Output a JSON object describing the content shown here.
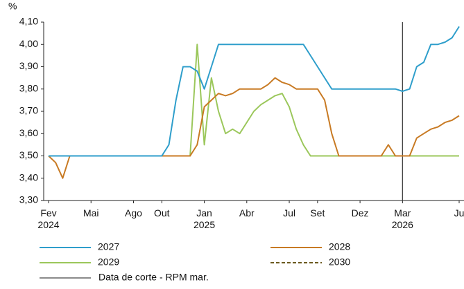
{
  "chart_data": {
    "type": "line",
    "y_axis_label": "%",
    "categories": [
      "Fev\n2024",
      null,
      null,
      null,
      null,
      null,
      "Mai",
      null,
      null,
      null,
      null,
      null,
      "Ago",
      null,
      null,
      null,
      "Out",
      null,
      null,
      null,
      null,
      null,
      "Jan\n2025",
      null,
      null,
      null,
      null,
      null,
      "Abr",
      null,
      null,
      null,
      null,
      null,
      "Jul",
      null,
      null,
      null,
      "Set",
      null,
      null,
      null,
      null,
      null,
      "Dez",
      null,
      null,
      null,
      null,
      null,
      "Mar\n2026",
      null,
      null,
      null,
      null,
      null,
      null,
      null,
      "Ju"
    ],
    "series": [
      {
        "name": "2027",
        "color": "#2e9ecb",
        "dashed": false,
        "values": [
          3.5,
          3.5,
          3.5,
          3.5,
          3.5,
          3.5,
          3.5,
          3.5,
          3.5,
          3.5,
          3.5,
          3.5,
          3.5,
          3.5,
          3.5,
          3.5,
          3.5,
          3.55,
          3.75,
          3.9,
          3.9,
          3.88,
          3.8,
          3.9,
          4.0,
          4.0,
          4.0,
          4.0,
          4.0,
          4.0,
          4.0,
          4.0,
          4.0,
          4.0,
          4.0,
          4.0,
          4.0,
          3.95,
          3.9,
          3.85,
          3.8,
          3.8,
          3.8,
          3.8,
          3.8,
          3.8,
          3.8,
          3.8,
          3.8,
          3.8,
          3.79,
          3.8,
          3.9,
          3.92,
          4.0,
          4.0,
          4.01,
          4.03,
          4.08
        ]
      },
      {
        "name": "2028",
        "color": "#c87a23",
        "dashed": false,
        "values": [
          3.5,
          3.47,
          3.4,
          3.5,
          3.5,
          3.5,
          3.5,
          3.5,
          3.5,
          3.5,
          3.5,
          3.5,
          3.5,
          3.5,
          3.5,
          3.5,
          3.5,
          3.5,
          3.5,
          3.5,
          3.5,
          3.55,
          3.72,
          3.75,
          3.78,
          3.77,
          3.78,
          3.8,
          3.8,
          3.8,
          3.8,
          3.82,
          3.85,
          3.83,
          3.82,
          3.8,
          3.8,
          3.8,
          3.8,
          3.75,
          3.6,
          3.5,
          3.5,
          3.5,
          3.5,
          3.5,
          3.5,
          3.5,
          3.55,
          3.5,
          3.5,
          3.5,
          3.58,
          3.6,
          3.62,
          3.63,
          3.65,
          3.66,
          3.68
        ]
      },
      {
        "name": "2029",
        "color": "#9bc75b",
        "dashed": false,
        "values": [
          3.5,
          3.5,
          3.5,
          3.5,
          3.5,
          3.5,
          3.5,
          3.5,
          3.5,
          3.5,
          3.5,
          3.5,
          3.5,
          3.5,
          3.5,
          3.5,
          3.5,
          3.5,
          3.5,
          3.5,
          3.5,
          4.0,
          3.55,
          3.85,
          3.7,
          3.6,
          3.62,
          3.6,
          3.65,
          3.7,
          3.73,
          3.75,
          3.77,
          3.78,
          3.72,
          3.62,
          3.55,
          3.5,
          3.5,
          3.5,
          3.5,
          3.5,
          3.5,
          3.5,
          3.5,
          3.5,
          3.5,
          3.5,
          3.5,
          3.5,
          3.5,
          3.5,
          3.5,
          3.5,
          3.5,
          3.5,
          3.5,
          3.5,
          3.5
        ]
      },
      {
        "name": "2030",
        "color": "#6b5a1e",
        "dashed": true,
        "values": [
          null,
          null,
          null,
          null,
          null,
          null,
          null,
          null,
          null,
          null,
          null,
          null,
          null,
          null,
          null,
          null,
          null,
          null,
          null,
          null,
          null,
          null,
          null,
          null,
          null,
          null,
          null,
          null,
          null,
          null,
          null,
          null,
          null,
          null,
          null,
          null,
          null,
          null,
          null,
          null,
          null,
          null,
          null,
          null,
          null,
          3.5,
          3.5,
          3.5,
          3.5,
          3.5,
          3.5,
          3.5,
          3.5,
          3.5,
          3.5,
          3.5,
          3.5,
          3.5,
          3.5
        ]
      }
    ],
    "vline": {
      "label": "Data de corte - RPM mar.",
      "at": "Mar\n2026",
      "color": "#444444"
    },
    "ylim": [
      3.3,
      4.1
    ],
    "yticks": [
      {
        "value": 3.3,
        "label": "3,30"
      },
      {
        "value": 3.4,
        "label": "3,40"
      },
      {
        "value": 3.5,
        "label": "3,50"
      },
      {
        "value": 3.6,
        "label": "3,60"
      },
      {
        "value": 3.7,
        "label": "3,70"
      },
      {
        "value": 3.8,
        "label": "3,80"
      },
      {
        "value": 3.9,
        "label": "3,90"
      },
      {
        "value": 4.0,
        "label": "4,00"
      },
      {
        "value": 4.1,
        "label": "4,10"
      }
    ],
    "grid": false
  }
}
